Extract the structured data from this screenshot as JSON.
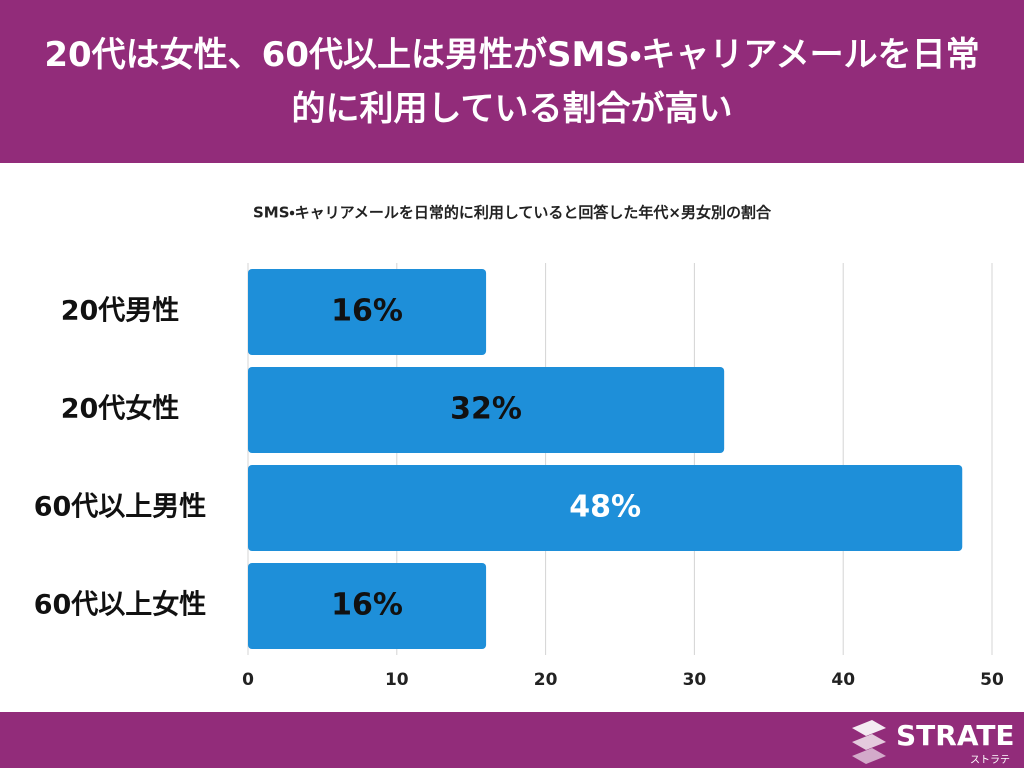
{
  "header": {
    "title": "20代は女性、60代以上は男性がSMS・キャリアメールを日常的に利用している割合が高い"
  },
  "chart_data": {
    "type": "barh",
    "title": "SMS・キャリアメールを日常的に利用していると回答した年代×男女別の割合",
    "categories": [
      "20代男性",
      "20代女性",
      "60代以上男性",
      "60代以上女性"
    ],
    "values": [
      16,
      32,
      48,
      16
    ],
    "value_labels": [
      "16%",
      "32%",
      "48%",
      "16%"
    ],
    "label_colors": [
      "#111111",
      "#111111",
      "#ffffff",
      "#111111"
    ],
    "color": "#1e8fd9",
    "xlim": [
      0,
      50
    ],
    "xticks": [
      0,
      10,
      20,
      30,
      40,
      50
    ],
    "grid": true
  },
  "footer": {
    "brand": "STRATE",
    "brand_kana": "ストラテ"
  }
}
